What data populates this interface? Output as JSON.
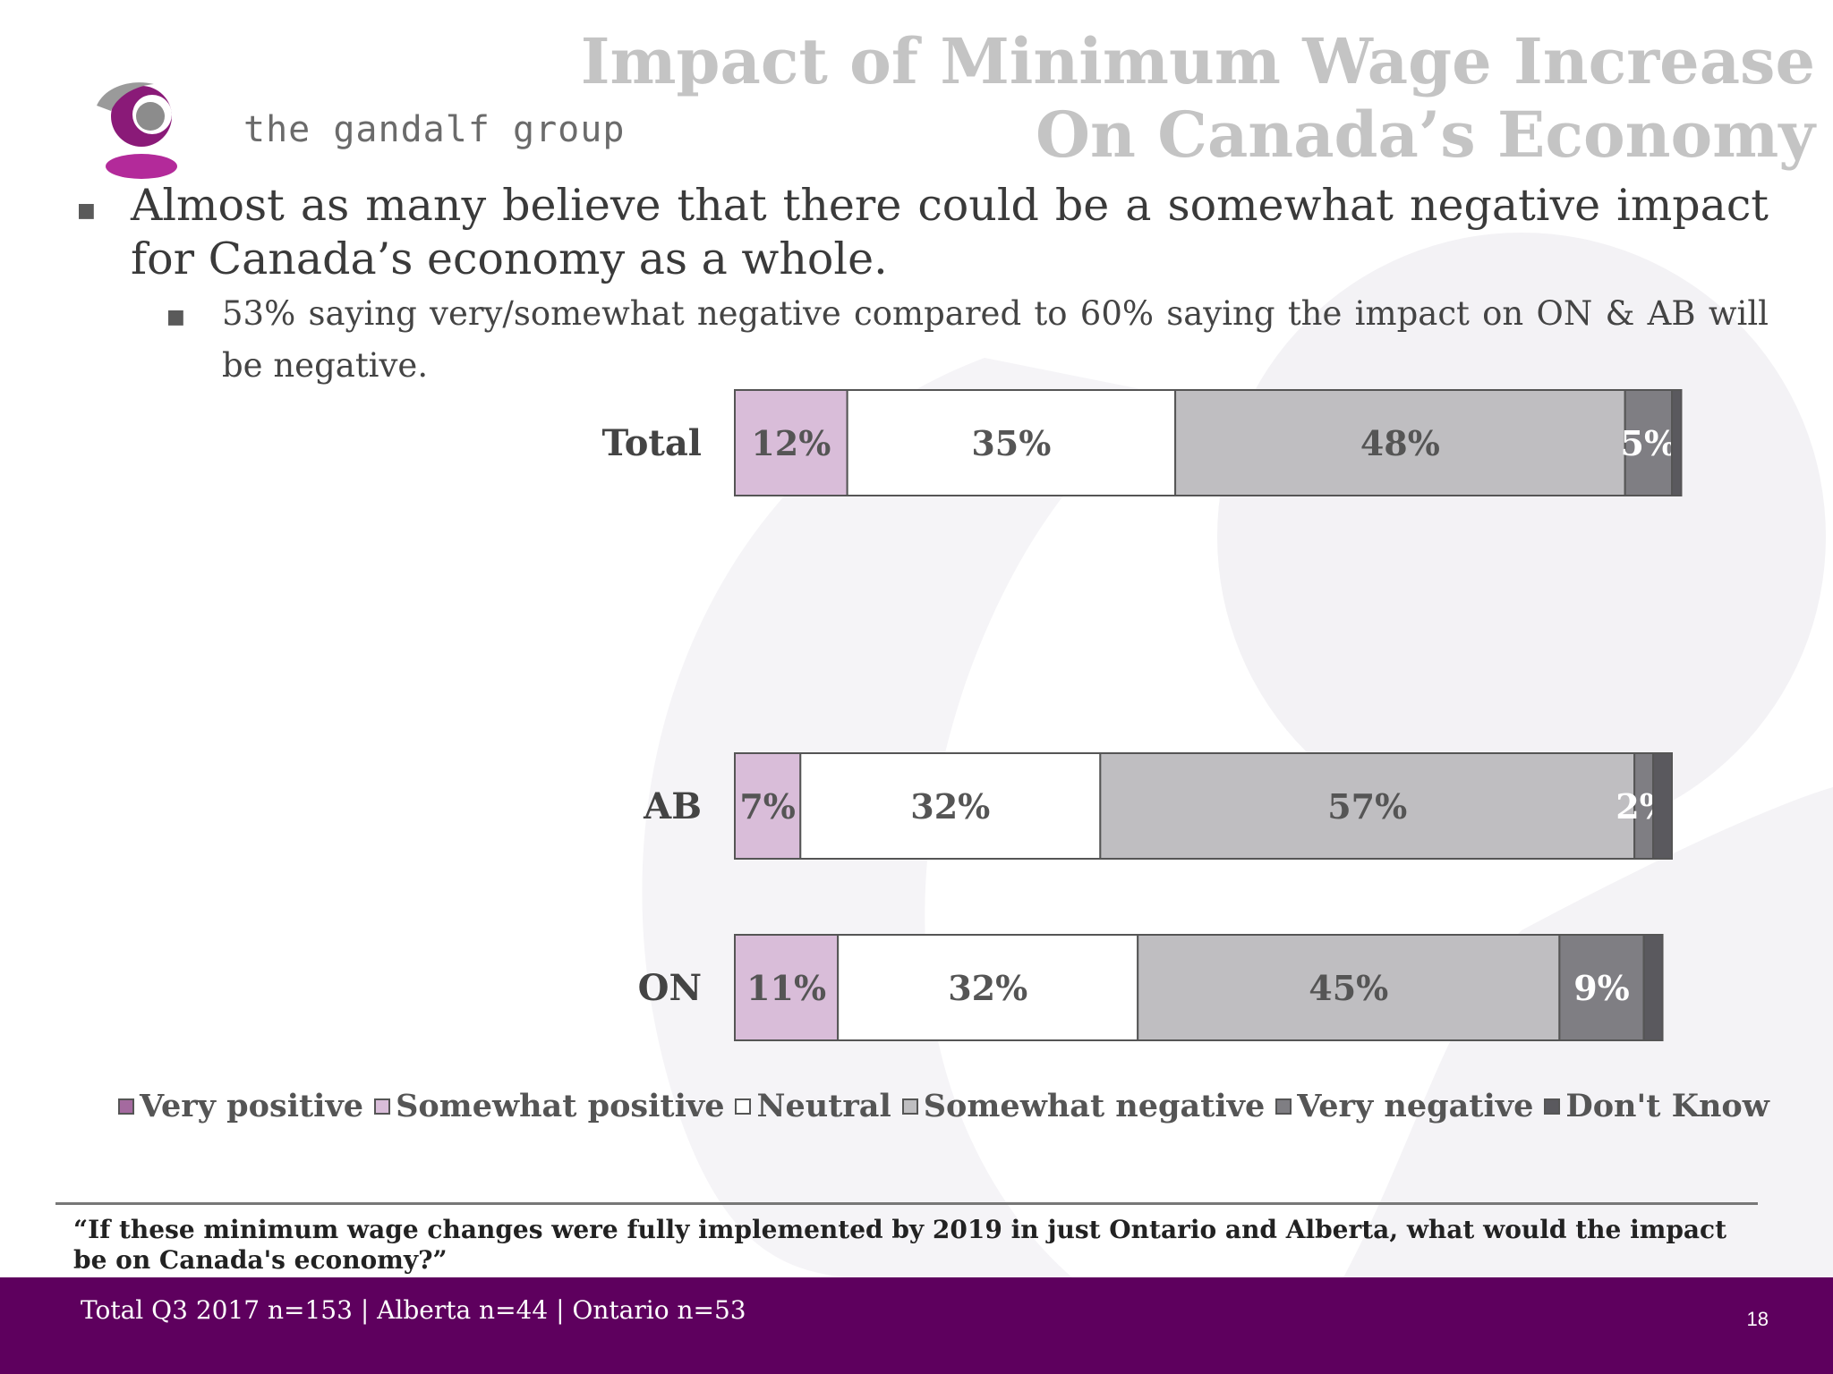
{
  "brand": {
    "name": "the gandalf group",
    "colors": {
      "purple": "#8a1a78",
      "magenta": "#b32a9a",
      "gray": "#6b6b6b",
      "footer": "#5e005e"
    }
  },
  "slide": {
    "title_line1": "Impact of Minimum Wage Increase",
    "title_line2": "On Canada’s Economy",
    "bullet1": "Almost as many believe that there could be a somewhat negative impact for Canada’s economy as a whole.",
    "bullet2": "53% saying very/somewhat negative compared to 60% saying the impact on ON & AB will be negative.",
    "question": "“If these minimum wage changes were fully implemented by 2019 in just Ontario and Alberta, what would the impact be on Canada's economy?”",
    "footer_note": "Total Q3 2017 n=153 | Alberta n=44 | Ontario n=53",
    "page_number": "18"
  },
  "chart_data": {
    "type": "bar",
    "orientation": "horizontal",
    "stacked": true,
    "categories": [
      "Total",
      "AB",
      "ON"
    ],
    "series": [
      {
        "name": "Very positive",
        "color": "#a46a9f",
        "values": [
          0,
          0,
          0
        ],
        "labels": [
          "",
          "",
          ""
        ]
      },
      {
        "name": "Somewhat positive",
        "color": "#d9bdd9",
        "values": [
          12,
          7,
          11
        ],
        "labels": [
          "12%",
          "7%",
          "11%"
        ]
      },
      {
        "name": "Neutral",
        "color": "#ffffff",
        "values": [
          35,
          32,
          32
        ],
        "labels": [
          "35%",
          "32%",
          "32%"
        ]
      },
      {
        "name": "Somewhat negative",
        "color": "#bfbec1",
        "values": [
          48,
          57,
          45
        ],
        "labels": [
          "48%",
          "57%",
          "45%"
        ]
      },
      {
        "name": "Very negative",
        "color": "#7f7e83",
        "values": [
          5,
          2,
          9
        ],
        "labels": [
          "5%",
          "2%",
          "9%"
        ]
      },
      {
        "name": "Don't Know",
        "color": "#5a595e",
        "values": [
          1,
          2,
          2
        ],
        "labels": [
          "",
          "",
          ""
        ]
      }
    ],
    "label_colors": {
      "Very negative": "#ffffff"
    },
    "legend_position": "bottom",
    "grid": false
  }
}
